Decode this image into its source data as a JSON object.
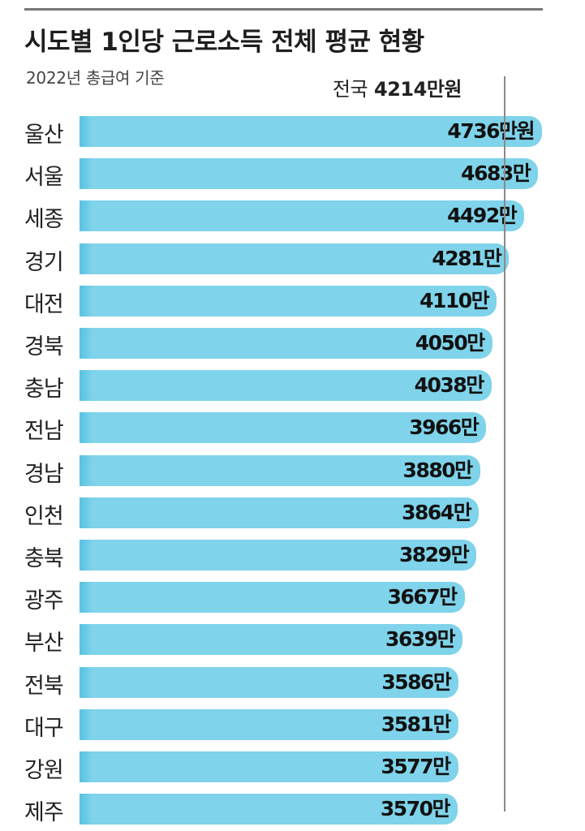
{
  "colors": {
    "bar": "#7fd3ea",
    "bar_edge": "#5cc4e2",
    "reference_line": "#8a8a8a"
  },
  "chart_data": {
    "type": "bar",
    "orientation": "horizontal",
    "title": "시도별 1인당 근로소득 전체 평균 현황",
    "subtitle": "2022년 총급여 기준",
    "unit": "만원",
    "reference": {
      "label": "전국",
      "value": 4214,
      "value_label": "4214만원"
    },
    "categories": [
      "울산",
      "서울",
      "세종",
      "경기",
      "대전",
      "경북",
      "충남",
      "전남",
      "경남",
      "인천",
      "충북",
      "광주",
      "부산",
      "전북",
      "대구",
      "강원",
      "제주"
    ],
    "values": [
      4736,
      4683,
      4492,
      4281,
      4110,
      4050,
      4038,
      3966,
      3880,
      3864,
      3829,
      3667,
      3639,
      3586,
      3581,
      3577,
      3570
    ],
    "value_labels": [
      "4736만원",
      "4683만",
      "4492만",
      "4281만",
      "4110만",
      "4050만",
      "4038만",
      "3966만",
      "3880만",
      "3864만",
      "3829만",
      "3667만",
      "3639만",
      "3586만",
      "3581만",
      "3577만",
      "3570만"
    ]
  }
}
